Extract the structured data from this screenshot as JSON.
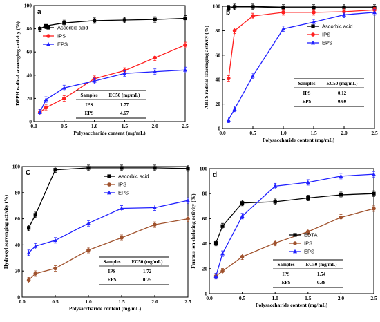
{
  "chart_data": [
    {
      "panel": "a",
      "type": "line",
      "xlabel": "Polysaccharide content (mg/mL)",
      "ylabel": "DPPH radical scavenging activity (%)",
      "xlim": [
        0,
        2.5
      ],
      "ylim": [
        0,
        100
      ],
      "xticks": [
        "0.0",
        "0.5",
        "1.0",
        "1.5",
        "2.0",
        "2.5"
      ],
      "yticks": [
        "0",
        "20",
        "40",
        "60",
        "80",
        "100"
      ],
      "x": [
        0.1,
        0.2,
        0.5,
        1.0,
        1.5,
        2.0,
        2.5
      ],
      "legend_position": "top-left",
      "series": [
        {
          "name": "Ascorbic acid",
          "color": "#000000",
          "marker": "square",
          "values": [
            80,
            82.5,
            85,
            87,
            87.5,
            88,
            89
          ]
        },
        {
          "name": "IPS",
          "color": "#ff2020",
          "marker": "circle",
          "values": [
            8,
            12,
            20,
            37,
            44,
            55,
            66
          ]
        },
        {
          "name": "EPS",
          "color": "#2020ff",
          "marker": "triangle",
          "values": [
            8,
            19,
            29,
            35,
            41.5,
            43,
            44.5
          ]
        }
      ],
      "table": {
        "headers": [
          "Samples",
          "EC50 (mg/mL)"
        ],
        "rows": [
          [
            "IPS",
            "1.77"
          ],
          [
            "EPS",
            "4.67"
          ]
        ]
      }
    },
    {
      "panel": "b",
      "type": "line",
      "xlabel": "Polysaccharide content (mg/mL)",
      "ylabel": "ABTS radical scavenging activity (%)",
      "xlim": [
        0,
        2.5
      ],
      "ylim": [
        0,
        100
      ],
      "xticks": [
        "0.0",
        "0.5",
        "1.0",
        "1.5",
        "2.0",
        "2.5"
      ],
      "yticks": [
        "0",
        "20",
        "40",
        "60",
        "80",
        "100"
      ],
      "x": [
        0.1,
        0.2,
        0.5,
        1.0,
        1.5,
        2.0,
        2.5
      ],
      "legend_position": "top-right",
      "series": [
        {
          "name": "Ascorbic acid",
          "color": "#000000",
          "marker": "square",
          "values": [
            98.5,
            99.5,
            99.5,
            99,
            99,
            99,
            99
          ]
        },
        {
          "name": "IPS",
          "color": "#ff2020",
          "marker": "circle",
          "values": [
            41,
            80,
            92,
            95,
            95,
            95.5,
            97
          ]
        },
        {
          "name": "EPS",
          "color": "#2020ff",
          "marker": "triangle",
          "values": [
            7,
            16,
            43,
            81.5,
            87,
            93,
            95
          ]
        }
      ],
      "table": {
        "headers": [
          "Samples",
          "EC50 (mg/mL)"
        ],
        "rows": [
          [
            "IPS",
            "0.12"
          ],
          [
            "EPS",
            "0.60"
          ]
        ]
      }
    },
    {
      "panel": "C",
      "type": "line",
      "xlabel": "Polysaccharide content (mg/mL)",
      "ylabel": "Hydroxyl scavenging activity (%)",
      "xlim": [
        0,
        2.5
      ],
      "ylim": [
        0,
        100
      ],
      "xticks": [
        "0.0",
        "0.5",
        "1.0",
        "1.5",
        "2.0",
        "2.5"
      ],
      "yticks": [
        "0",
        "20",
        "40",
        "60",
        "80",
        "100"
      ],
      "x": [
        0.1,
        0.2,
        0.5,
        1.0,
        1.5,
        2.0,
        2.5
      ],
      "legend_position": "top-right",
      "series": [
        {
          "name": "Ascorbic acid",
          "color": "#000000",
          "marker": "square",
          "values": [
            53,
            63,
            97.5,
            99,
            99,
            99,
            98.5
          ]
        },
        {
          "name": "IPS",
          "color": "#a0522d",
          "marker": "circle",
          "values": [
            13,
            18,
            22,
            36,
            45.5,
            55.5,
            60
          ]
        },
        {
          "name": "EPS",
          "color": "#2020ff",
          "marker": "triangle",
          "values": [
            34,
            39,
            43.5,
            56.5,
            68,
            68.5,
            74
          ]
        }
      ],
      "table": {
        "headers": [
          "Samples",
          "EC50 (mg/mL)"
        ],
        "rows": [
          [
            "IPS",
            "1.72"
          ],
          [
            "EPS",
            "0.75"
          ]
        ]
      }
    },
    {
      "panel": "d",
      "type": "line",
      "xlabel": "Polysaccharide content (mg/mL)",
      "ylabel": "Ferrous ion chelating activity (%)",
      "xlim": [
        0,
        2.5
      ],
      "ylim": [
        0,
        100
      ],
      "xticks": [
        "0.0",
        "0.5",
        "1.0",
        "1.5",
        "2.0",
        "2.5"
      ],
      "yticks": [
        "0",
        "20",
        "40",
        "60",
        "80",
        "100"
      ],
      "x": [
        0.1,
        0.2,
        0.5,
        1.0,
        1.5,
        2.0,
        2.5
      ],
      "legend_position": "center-right",
      "series": [
        {
          "name": "EDTA",
          "color": "#000000",
          "marker": "square",
          "values": [
            40.5,
            54,
            72.5,
            73.5,
            76.5,
            79,
            80
          ]
        },
        {
          "name": "IPS",
          "color": "#a0522d",
          "marker": "circle",
          "values": [
            14,
            18,
            29.5,
            40.5,
            49.5,
            61,
            68
          ]
        },
        {
          "name": "EPS",
          "color": "#2020ff",
          "marker": "triangle",
          "values": [
            14,
            32,
            62,
            86,
            89,
            94,
            95.5
          ]
        }
      ],
      "table": {
        "headers": [
          "Samples",
          "EC50 (mg/mL)"
        ],
        "rows": [
          [
            "IPS",
            "1.54"
          ],
          [
            "EPS",
            "0.38"
          ]
        ]
      }
    }
  ]
}
